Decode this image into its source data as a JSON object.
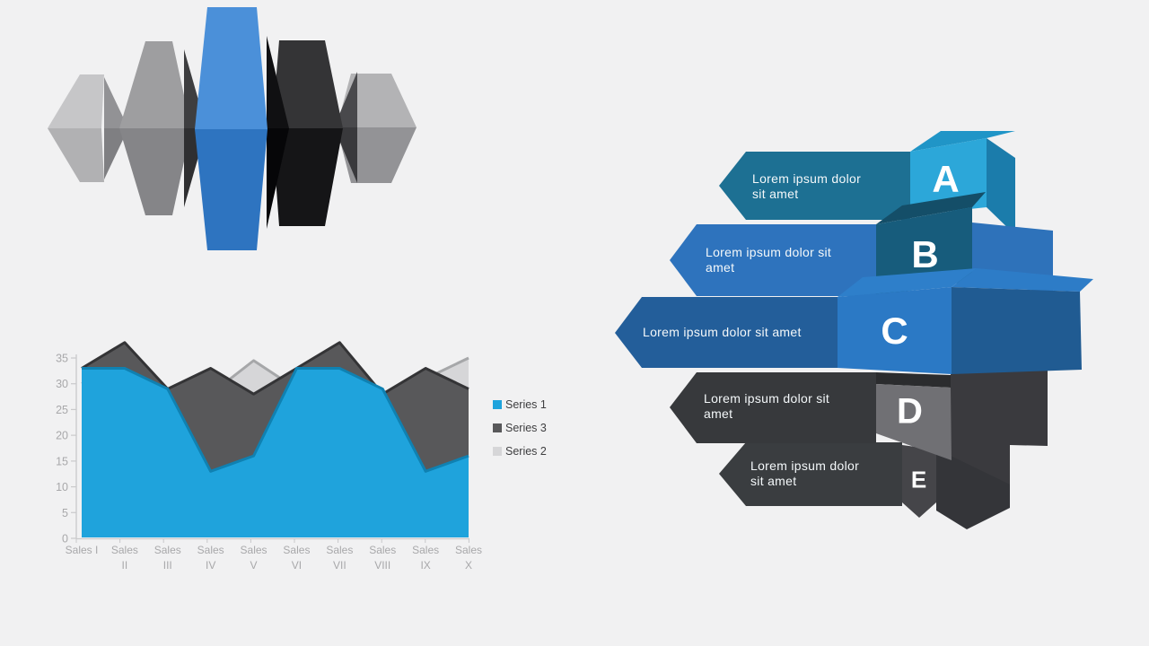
{
  "slide": {
    "background": "#f1f1f2"
  },
  "decor_prisms": {
    "description": "five-faceted-3d-prism-cluster",
    "palette": {
      "p1_upper": "#c6c6c8",
      "p1_lower": "#b1b1b3",
      "p1_side_upper": "#929295",
      "p1_side_lower": "#7f7f82",
      "p2_upper": "#9e9ea0",
      "p2_lower": "#858588",
      "p2_side_upper": "#3e3e40",
      "p2_side_lower": "#2f2f31",
      "p3_upper": "#4b90d9",
      "p3_lower": "#2e74c0",
      "p3_side_upper": "#101012",
      "p3_side_lower": "#060608",
      "p4_upper": "#343436",
      "p4_lower": "#151517",
      "p5_upper": "#b3b3b5",
      "p5_lower": "#939396",
      "p5_side_upper": "#49494c",
      "p5_side_lower": "#39393c"
    }
  },
  "infographic": {
    "items": [
      {
        "letter": "A",
        "lines": [
          "Lorem ipsum dolor",
          "sit amet"
        ],
        "colors": {
          "banner": "#1d7093",
          "front": "#2ca7d9",
          "top": "#2095c7",
          "side": "#1b7cab"
        }
      },
      {
        "letter": "B",
        "lines": [
          "Lorem ipsum dolor sit",
          "amet"
        ],
        "colors": {
          "banner": "#2e73bd",
          "front": "#175c7c",
          "top": "#144e68",
          "block": "#2e72ba"
        }
      },
      {
        "letter": "C",
        "lines": [
          "Lorem ipsum dolor sit amet"
        ],
        "colors": {
          "banner": "#235e9a",
          "front": "#2b79c5",
          "top": "#2e7fca",
          "panel": "#205b92",
          "ribbon": "#2d7cc7"
        }
      },
      {
        "letter": "D",
        "lines": [
          "Lorem ipsum dolor sit",
          "amet"
        ],
        "colors": {
          "banner": "#37393c",
          "front": "#707074",
          "top": "#2b2c2e",
          "block": "#3a3a3e"
        }
      },
      {
        "letter": "E",
        "lines": [
          "Lorem ipsum dolor",
          "sit amet"
        ],
        "colors": {
          "banner": "#3a3d40",
          "front": "#454549",
          "block": "#343539"
        }
      }
    ]
  },
  "chart_data": {
    "type": "area",
    "title": "",
    "xlabel": "",
    "ylabel": "",
    "categories": [
      "Sales I",
      "Sales II",
      "Sales III",
      "Sales IV",
      "Sales V",
      "Sales VI",
      "Sales VII",
      "Sales VIII",
      "Sales IX",
      "Sales X"
    ],
    "series": [
      {
        "name": "Series 1",
        "color": "#1fa3dc",
        "edge": "#0f81b2",
        "values": [
          33,
          33,
          29,
          13,
          16,
          33,
          33,
          29,
          13,
          16
        ]
      },
      {
        "name": "Series 3",
        "color": "#58585a",
        "edge": "#343436",
        "values": [
          33,
          38,
          29,
          33,
          28,
          33,
          38,
          28,
          33,
          29
        ]
      },
      {
        "name": "Series 2",
        "color": "#d6d6d8",
        "edge": "#a6a7a9",
        "values": [
          30,
          33,
          27,
          28,
          34.5,
          29,
          32,
          26,
          31,
          35
        ]
      }
    ],
    "draw_order_back_to_front": [
      "Series 2",
      "Series 3",
      "Series 1"
    ],
    "ylim": [
      0,
      35
    ],
    "yticks": [
      0,
      5,
      10,
      15,
      20,
      25,
      30,
      35
    ],
    "grid": false,
    "legend_position": "right",
    "axis_color": "#c9c9cb",
    "label_color": "#a8a8aa"
  }
}
